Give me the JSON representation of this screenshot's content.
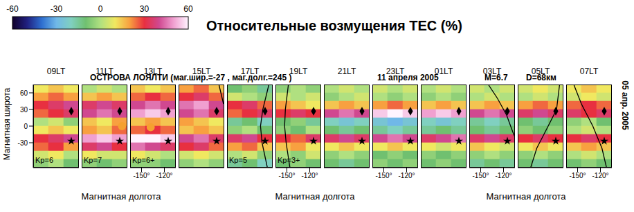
{
  "title": "Относительные возмущения TEC (%)",
  "site": "ОСТРОВА ЛОЯЛТИ (маг.шир.=-27 , маг.долг.=245 )",
  "date": "11 апреля 2005",
  "magnitude": "M=6.7",
  "depth": "D=68км",
  "side_label": "05 апр. 2005",
  "y_label": "Магнитная широта",
  "x_labels": [
    "Магнитная долгота",
    "Магнитная долгота",
    "Магнитная долгота"
  ],
  "colorbar": {
    "range": [
      -60,
      60
    ],
    "ticks": [
      -60,
      -30,
      0,
      30,
      60
    ],
    "colors": [
      "#10002a",
      "#202080",
      "#2e6fd0",
      "#70b8e8",
      "#80d0c0",
      "#70c070",
      "#b0e080",
      "#f0e860",
      "#f8a040",
      "#e83040",
      "#d04890",
      "#f0a0d0",
      "#fff4ff"
    ]
  },
  "xlim": [
    -165,
    -105
  ],
  "xticks": [
    {
      "value": -150,
      "label": "-150°"
    },
    {
      "value": -120,
      "label": "-120°"
    }
  ],
  "ylim": [
    -75,
    75
  ],
  "yticks": [
    -30,
    0,
    30,
    60
  ],
  "lon": [
    -155,
    -135,
    -115
  ],
  "lat": [
    67.5,
    52.5,
    37.5,
    22.5,
    7.5,
    -7.5,
    -22.5,
    -37.5,
    -52.5,
    -67.5
  ],
  "markers": [
    {
      "lon": -115,
      "lat": 27,
      "marker": "diamond",
      "color": "#000000"
    },
    {
      "lon": -115,
      "lat": -27,
      "marker": "star",
      "color": "#000000"
    }
  ],
  "chart_data": [
    {
      "type": "heatmap",
      "title": "09LT",
      "tick_labels": "y",
      "annotation": "Kp=6",
      "values": [
        [
          10,
          15,
          10
        ],
        [
          20,
          25,
          20
        ],
        [
          30,
          35,
          40
        ],
        [
          25,
          30,
          35
        ],
        [
          0,
          5,
          -5
        ],
        [
          10,
          15,
          10
        ],
        [
          30,
          35,
          40
        ],
        [
          25,
          30,
          20
        ],
        [
          5,
          10,
          0
        ],
        [
          -5,
          0,
          -10
        ]
      ]
    },
    {
      "type": "heatmap",
      "title": "11LT",
      "tick_labels": false,
      "annotation": "Kp=7",
      "subsolar": {
        "lon": -112,
        "lat": 0,
        "color": "#f5a030"
      },
      "values": [
        [
          0,
          5,
          0
        ],
        [
          15,
          20,
          15
        ],
        [
          35,
          40,
          35
        ],
        [
          40,
          45,
          40
        ],
        [
          15,
          10,
          20
        ],
        [
          20,
          15,
          25
        ],
        [
          50,
          55,
          50
        ],
        [
          35,
          40,
          30
        ],
        [
          10,
          5,
          5
        ],
        [
          -5,
          -10,
          -5
        ]
      ]
    },
    {
      "type": "heatmap",
      "title": "13LT",
      "tick_labels": "x",
      "annotation": "Kp=6+",
      "subsolar": {
        "lon": -138,
        "lat": -2,
        "color": "#f5a030"
      },
      "values": [
        [
          15,
          10,
          15
        ],
        [
          25,
          30,
          25
        ],
        [
          40,
          45,
          40
        ],
        [
          50,
          55,
          50
        ],
        [
          15,
          20,
          15
        ],
        [
          25,
          30,
          25
        ],
        [
          60,
          60,
          55
        ],
        [
          45,
          40,
          35
        ],
        [
          10,
          5,
          0
        ],
        [
          -5,
          -5,
          -10
        ]
      ]
    },
    {
      "type": "heatmap",
      "title": "15LT",
      "tick_labels": false,
      "terminator": {
        "lon": [
          -112,
          -106
        ],
        "lat": [
          75,
          40
        ]
      },
      "values": [
        [
          20,
          25,
          15
        ],
        [
          30,
          35,
          25
        ],
        [
          45,
          50,
          40
        ],
        [
          40,
          45,
          35
        ],
        [
          20,
          15,
          10
        ],
        [
          15,
          20,
          15
        ],
        [
          40,
          45,
          35
        ],
        [
          30,
          35,
          25
        ],
        [
          5,
          10,
          5
        ],
        [
          -5,
          0,
          -5
        ]
      ]
    },
    {
      "type": "heatmap",
      "title": "17LT",
      "tick_labels": false,
      "annotation": "Kp=5",
      "terminator": {
        "lon": [
          -110,
          -118,
          -121,
          -119,
          -112
        ],
        "lat": [
          75,
          30,
          0,
          -30,
          -75
        ]
      },
      "values": [
        [
          -10,
          -5,
          -15
        ],
        [
          5,
          0,
          -5
        ],
        [
          30,
          35,
          25
        ],
        [
          25,
          30,
          35
        ],
        [
          -15,
          -10,
          -20
        ],
        [
          -5,
          0,
          -10
        ],
        [
          35,
          40,
          30
        ],
        [
          20,
          25,
          15
        ],
        [
          0,
          5,
          -5
        ],
        [
          -15,
          -10,
          -20
        ]
      ]
    },
    {
      "type": "heatmap",
      "title": "19LT",
      "tick_labels": "x",
      "annotation": "Kp=3+",
      "terminator": {
        "lon": [
          -148,
          -152,
          -153,
          -151,
          -146
        ],
        "lat": [
          75,
          30,
          0,
          -30,
          -75
        ]
      },
      "values": [
        [
          -5,
          0,
          -5
        ],
        [
          5,
          0,
          5
        ],
        [
          20,
          15,
          10
        ],
        [
          30,
          35,
          30
        ],
        [
          -10,
          -5,
          -15
        ],
        [
          -5,
          -10,
          0
        ],
        [
          30,
          25,
          35
        ],
        [
          15,
          20,
          10
        ],
        [
          0,
          -5,
          5
        ],
        [
          -10,
          -5,
          -10
        ]
      ]
    },
    {
      "type": "heatmap",
      "title": "21LT",
      "tick_labels": false,
      "values": [
        [
          0,
          5,
          0
        ],
        [
          -5,
          0,
          5
        ],
        [
          15,
          20,
          15
        ],
        [
          40,
          45,
          40
        ],
        [
          -20,
          -25,
          -20
        ],
        [
          -10,
          -15,
          -10
        ],
        [
          35,
          40,
          35
        ],
        [
          10,
          15,
          10
        ],
        [
          -5,
          0,
          -5
        ],
        [
          -10,
          -15,
          -10
        ]
      ]
    },
    {
      "type": "heatmap",
      "title": "23LT",
      "tick_labels": "x",
      "values": [
        [
          5,
          0,
          5
        ],
        [
          0,
          -5,
          0
        ],
        [
          20,
          25,
          20
        ],
        [
          55,
          60,
          55
        ],
        [
          -25,
          -30,
          -25
        ],
        [
          -15,
          -20,
          -15
        ],
        [
          40,
          45,
          40
        ],
        [
          10,
          15,
          10
        ],
        [
          -10,
          -5,
          -10
        ],
        [
          -5,
          -10,
          -5
        ]
      ]
    },
    {
      "type": "heatmap",
      "title": "01LT",
      "tick_labels": false,
      "values": [
        [
          0,
          5,
          0
        ],
        [
          -5,
          0,
          -5
        ],
        [
          15,
          20,
          15
        ],
        [
          50,
          55,
          50
        ],
        [
          -20,
          -25,
          -20
        ],
        [
          -15,
          -10,
          -15
        ],
        [
          35,
          40,
          45
        ],
        [
          10,
          5,
          10
        ],
        [
          -5,
          -10,
          -5
        ],
        [
          -10,
          -5,
          -10
        ]
      ]
    },
    {
      "type": "heatmap",
      "title": "03LT",
      "tick_labels": "x",
      "terminator": {
        "lon": [
          -140,
          -128,
          -116,
          -108,
          -105
        ],
        "lat": [
          75,
          50,
          20,
          -10,
          -20
        ]
      },
      "values": [
        [
          5,
          0,
          5
        ],
        [
          0,
          5,
          0
        ],
        [
          15,
          20,
          15
        ],
        [
          40,
          45,
          40
        ],
        [
          -15,
          -20,
          -15
        ],
        [
          -10,
          -15,
          -10
        ],
        [
          35,
          40,
          35
        ],
        [
          15,
          10,
          5
        ],
        [
          -5,
          0,
          -5
        ],
        [
          -15,
          -10,
          -15
        ]
      ]
    },
    {
      "type": "heatmap",
      "title": "05LT",
      "tick_labels": false,
      "terminator": {
        "lon": [
          -110,
          -114,
          -125,
          -140,
          -148
        ],
        "lat": [
          75,
          30,
          0,
          -40,
          -75
        ]
      },
      "values": [
        [
          5,
          10,
          5
        ],
        [
          0,
          5,
          0
        ],
        [
          20,
          25,
          20
        ],
        [
          35,
          40,
          35
        ],
        [
          -10,
          -15,
          -10
        ],
        [
          -5,
          -10,
          -5
        ],
        [
          30,
          35,
          30
        ],
        [
          10,
          15,
          10
        ],
        [
          -5,
          0,
          -5
        ],
        [
          -10,
          -15,
          -10
        ]
      ]
    },
    {
      "type": "heatmap",
      "title": "07LT",
      "tick_labels": "x",
      "terminator": {
        "lon": [
          -155,
          -145,
          -130,
          -118,
          -112
        ],
        "lat": [
          75,
          40,
          0,
          -40,
          -75
        ]
      },
      "values": [
        [
          10,
          15,
          10
        ],
        [
          5,
          10,
          5
        ],
        [
          25,
          30,
          25
        ],
        [
          35,
          30,
          35
        ],
        [
          -5,
          0,
          -10
        ],
        [
          0,
          5,
          0
        ],
        [
          30,
          35,
          30
        ],
        [
          15,
          20,
          15
        ],
        [
          0,
          5,
          0
        ],
        [
          -10,
          -5,
          -10
        ]
      ]
    }
  ]
}
